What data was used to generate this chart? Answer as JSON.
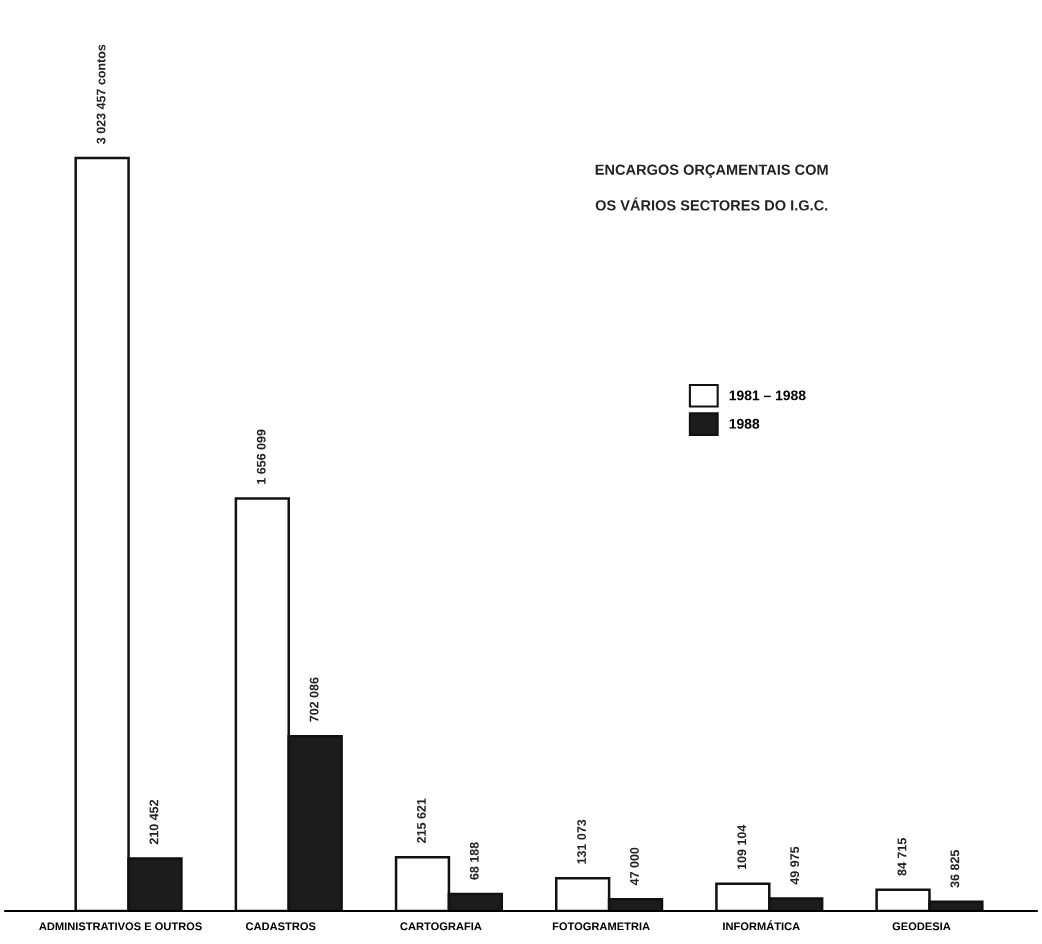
{
  "chart_data": {
    "type": "bar",
    "title": "ENCARGOS ORÇAMENTAIS COM\n\nOS VÁRIOS SECTORES DO I.G.C.",
    "categories": [
      "ADMINISTRATIVOS E OUTROS",
      "CADASTROS",
      "CARTOGRAFIA",
      "FOTOGRAMETRIA",
      "INFORMÁTICA",
      "GEODESIA"
    ],
    "series": [
      {
        "name": "1981 – 1988",
        "color": "#ffffff",
        "values": [
          3023457,
          1656099,
          215621,
          131073,
          109104,
          84715
        ],
        "value_labels": [
          "3 023 457 contos",
          "1 656 099",
          "215 621",
          "131 073",
          "109 104",
          "84 715"
        ]
      },
      {
        "name": "1988",
        "color": "#1c1c1c",
        "values": [
          210452,
          702086,
          68188,
          47000,
          49975,
          36825
        ],
        "value_labels": [
          "210 452",
          "702 086",
          "68 188",
          "47 000",
          "49 975",
          "36 825"
        ]
      }
    ],
    "legend": "right",
    "grid": false
  }
}
